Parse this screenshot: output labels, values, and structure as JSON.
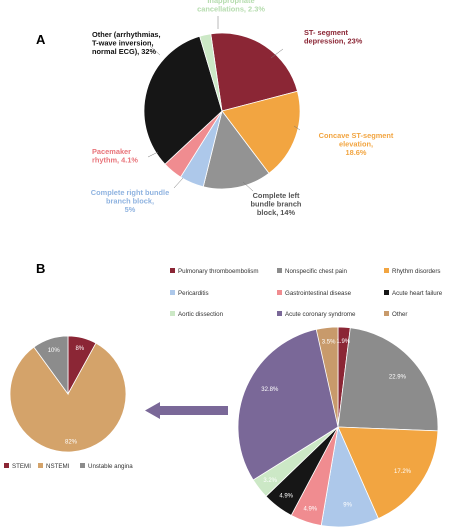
{
  "panels": {
    "a": "A",
    "b": "B"
  },
  "chart_data": [
    {
      "id": "A",
      "type": "pie",
      "slices": [
        {
          "label_lines": [
            "ST- segment",
            "depression, 23%"
          ],
          "value": 23,
          "color": "#8b2635",
          "text_color": "#8b2635"
        },
        {
          "label_lines": [
            "Concave ST-segment",
            "elevation,",
            "18.6%"
          ],
          "value": 18.6,
          "color": "#f2a541",
          "text_color": "#f2a541"
        },
        {
          "label_lines": [
            "Complete left",
            "bundle branch",
            "block, 14%"
          ],
          "value": 14,
          "color": "#939393",
          "text_color": "#555555"
        },
        {
          "label_lines": [
            "Complete right bundle",
            "branch block,",
            "5%"
          ],
          "value": 5,
          "color": "#adc8ea",
          "text_color": "#8fb3e0"
        },
        {
          "label_lines": [
            "Pacemaker",
            "rhythm, 4.1%"
          ],
          "value": 4.1,
          "color": "#f08c90",
          "text_color": "#e8747a"
        },
        {
          "label_lines": [
            "Other (arrhythmias,",
            "T-wave inversion,",
            "normal ECG), 32%"
          ],
          "value": 32,
          "color": "#161616",
          "text_color": "#111111"
        },
        {
          "label_lines": [
            "Inappropriate",
            "cancellations, 2.3%"
          ],
          "value": 2.3,
          "color": "#cce8c6",
          "text_color": "#b5dcae"
        }
      ]
    },
    {
      "id": "B-large",
      "type": "pie",
      "legend": [
        {
          "label": "Pulmonary thromboembolism",
          "color": "#8b2635"
        },
        {
          "label": "Nonspecific chest pain",
          "color": "#8c8c8c"
        },
        {
          "label": "Rhythm disorders",
          "color": "#f2a541"
        },
        {
          "label": "Pericarditis",
          "color": "#adc8ea"
        },
        {
          "label": "Gastrointestinal disease",
          "color": "#f08c90"
        },
        {
          "label": "Acute heart failure",
          "color": "#161616"
        },
        {
          "label": "Aortic dissection",
          "color": "#cce8c6"
        },
        {
          "label": "Acute coronary syndrome",
          "color": "#7a6898"
        },
        {
          "label": "Other",
          "color": "#c89a6b"
        }
      ],
      "slices": [
        {
          "label": "1.9%",
          "value": 1.9,
          "color": "#8b2635"
        },
        {
          "label": "22.9%",
          "value": 22.9,
          "color": "#8c8c8c"
        },
        {
          "label": "17.2%",
          "value": 17.2,
          "color": "#f2a541"
        },
        {
          "label": "9%",
          "value": 9,
          "color": "#adc8ea"
        },
        {
          "label": "4.9%",
          "value": 4.9,
          "color": "#f08c90"
        },
        {
          "label": "4.9%",
          "value": 4.9,
          "color": "#161616"
        },
        {
          "label": "3.2%",
          "value": 3.2,
          "color": "#cce8c6"
        },
        {
          "label": "32.8%",
          "value": 32.8,
          "color": "#7a6898"
        },
        {
          "label": "3.5%",
          "value": 3.5,
          "color": "#c89a6b"
        }
      ]
    },
    {
      "id": "B-small",
      "type": "pie",
      "legend": [
        {
          "label": "STEMI",
          "color": "#8b2635"
        },
        {
          "label": "NSTEMI",
          "color": "#d4a36a"
        },
        {
          "label": "Unstable angina",
          "color": "#8c8c8c"
        }
      ],
      "slices": [
        {
          "label": "8%",
          "value": 8,
          "color": "#8b2635"
        },
        {
          "label": "82%",
          "value": 82,
          "color": "#d4a36a"
        },
        {
          "label": "10%",
          "value": 10,
          "color": "#8c8c8c"
        }
      ]
    }
  ]
}
